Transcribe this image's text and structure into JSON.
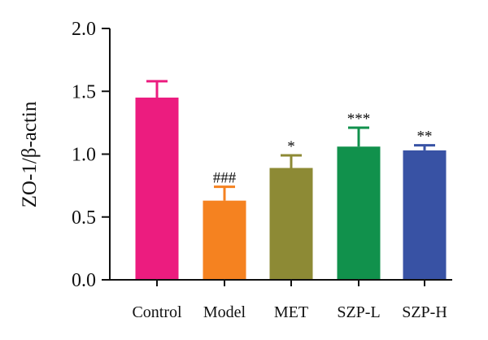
{
  "chart_data": {
    "type": "bar",
    "ylabel": "ZO-1/β-actin",
    "xlabel": "",
    "ylim": [
      0,
      2.0
    ],
    "yticks": [
      "0.0",
      "0.5",
      "1.0",
      "1.5",
      "2.0"
    ],
    "grid": false,
    "categories": [
      "Control",
      "Model",
      "MET",
      "SZP-L",
      "SZP-H"
    ],
    "values": [
      1.45,
      0.63,
      0.89,
      1.06,
      1.03
    ],
    "errors": [
      0.13,
      0.11,
      0.1,
      0.15,
      0.04
    ],
    "annotations": [
      "",
      "###",
      "*",
      "***",
      "**"
    ],
    "colors": [
      "#EC1C7F",
      "#F58220",
      "#8D8A35",
      "#11914C",
      "#3852A4"
    ]
  }
}
